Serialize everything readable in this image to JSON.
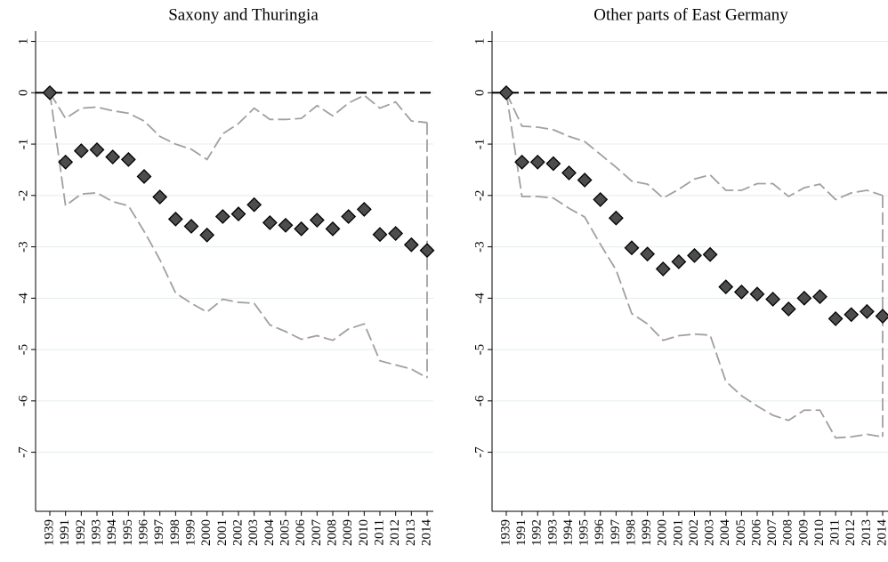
{
  "chart_data": [
    {
      "type": "line",
      "title": "Saxony and Thuringia",
      "categories": [
        "1939",
        "1991",
        "1992",
        "1993",
        "1994",
        "1995",
        "1996",
        "1997",
        "1998",
        "1999",
        "2000",
        "2001",
        "2002",
        "2003",
        "2004",
        "2005",
        "2006",
        "2007",
        "2008",
        "2009",
        "2010",
        "2011",
        "2012",
        "2013",
        "2014"
      ],
      "series": [
        {
          "color": "#4d4d4d",
          "style": "markers",
          "values": [
            0,
            -1.35,
            -1.13,
            -1.11,
            -1.25,
            -1.3,
            -1.63,
            -2.03,
            -2.46,
            -2.6,
            -2.77,
            -2.41,
            -2.36,
            -2.18,
            -2.53,
            -2.58,
            -2.65,
            -2.48,
            -2.65,
            -2.41,
            -2.27,
            -2.76,
            -2.74,
            -2.96,
            -3.07
          ]
        },
        {
          "color": "#a0a0a0",
          "style": "dashed",
          "values": [
            0,
            -0.5,
            -0.3,
            -0.28,
            -0.35,
            -0.4,
            -0.55,
            -0.85,
            -1.0,
            -1.1,
            -1.3,
            -0.8,
            -0.6,
            -0.3,
            -0.52,
            -0.52,
            -0.5,
            -0.25,
            -0.45,
            -0.2,
            -0.05,
            -0.3,
            -0.18,
            -0.55,
            -0.58
          ]
        },
        {
          "color": "#a0a0a0",
          "style": "dashed",
          "values": [
            0,
            -2.2,
            -1.97,
            -1.95,
            -2.12,
            -2.2,
            -2.7,
            -3.25,
            -3.9,
            -4.1,
            -4.27,
            -4.02,
            -4.08,
            -4.1,
            -4.52,
            -4.65,
            -4.8,
            -4.73,
            -4.82,
            -4.6,
            -4.5,
            -5.22,
            -5.3,
            -5.38,
            -5.55
          ]
        }
      ],
      "ylim": [
        -8.15,
        1.2
      ],
      "yticks": [
        1,
        0,
        -1,
        -2,
        -3,
        -4,
        -5,
        -6,
        -7
      ],
      "grid": true,
      "reference_line": 0
    },
    {
      "type": "line",
      "title": "Other parts of East Germany",
      "categories": [
        "1939",
        "1991",
        "1992",
        "1993",
        "1994",
        "1995",
        "1996",
        "1997",
        "1998",
        "1999",
        "2000",
        "2001",
        "2002",
        "2003",
        "2004",
        "2005",
        "2006",
        "2007",
        "2008",
        "2009",
        "2010",
        "2011",
        "2012",
        "2013",
        "2014"
      ],
      "series": [
        {
          "color": "#4d4d4d",
          "style": "markers",
          "values": [
            0,
            -1.35,
            -1.35,
            -1.38,
            -1.56,
            -1.7,
            -2.08,
            -2.44,
            -3.02,
            -3.14,
            -3.43,
            -3.29,
            -3.17,
            -3.15,
            -3.78,
            -3.88,
            -3.92,
            -4.02,
            -4.21,
            -4.0,
            -3.97,
            -4.4,
            -4.32,
            -4.26,
            -4.35
          ]
        },
        {
          "color": "#a0a0a0",
          "style": "dashed",
          "values": [
            0,
            -0.65,
            -0.67,
            -0.72,
            -0.85,
            -0.95,
            -1.2,
            -1.45,
            -1.72,
            -1.78,
            -2.05,
            -1.88,
            -1.68,
            -1.6,
            -1.9,
            -1.9,
            -1.77,
            -1.77,
            -2.02,
            -1.85,
            -1.78,
            -2.08,
            -1.95,
            -1.9,
            -2.0
          ]
        },
        {
          "color": "#a0a0a0",
          "style": "dashed",
          "values": [
            0,
            -2.02,
            -2.02,
            -2.05,
            -2.25,
            -2.42,
            -2.95,
            -3.45,
            -4.3,
            -4.5,
            -4.82,
            -4.73,
            -4.7,
            -4.72,
            -5.62,
            -5.9,
            -6.1,
            -6.28,
            -6.38,
            -6.18,
            -6.18,
            -6.72,
            -6.7,
            -6.65,
            -6.7
          ]
        }
      ],
      "ylim": [
        -8.15,
        1.2
      ],
      "yticks": [
        1,
        0,
        -1,
        -2,
        -3,
        -4,
        -5,
        -6,
        -7
      ],
      "grid": true,
      "reference_line": 0
    }
  ]
}
